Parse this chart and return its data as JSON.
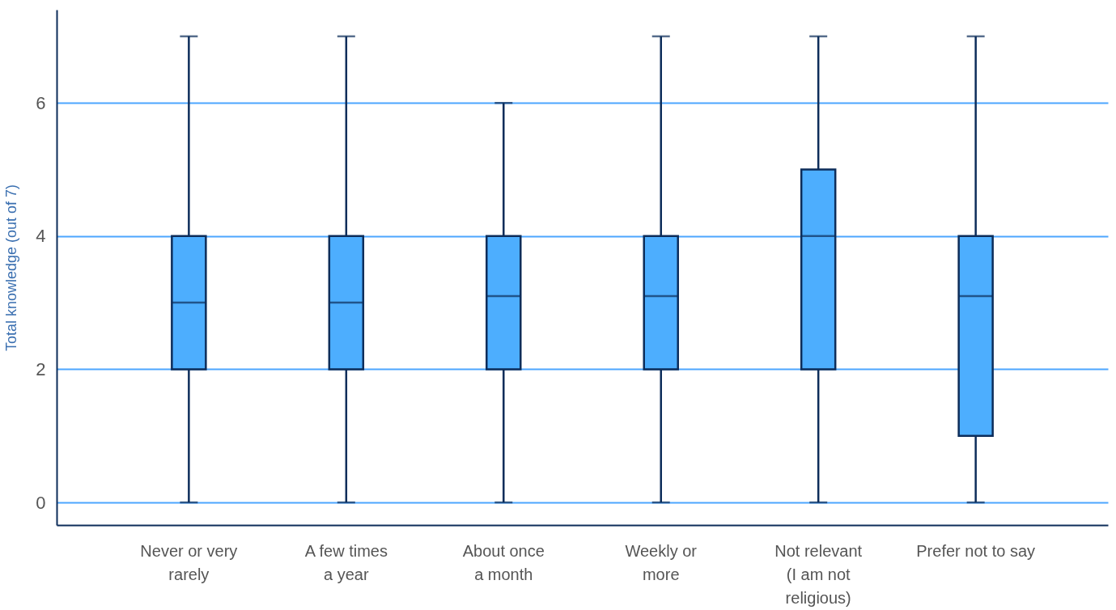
{
  "chart_data": {
    "type": "box",
    "ylabel": "Total knowledge (out of 7)",
    "categories": [
      "Never or very\nrarely",
      "A few times\na year",
      "About once\na month",
      "Weekly or\nmore",
      "Not relevant\n(I am not\nreligious)",
      "Prefer not to say"
    ],
    "boxes": [
      {
        "low": 0,
        "q1": 2,
        "median": 3,
        "q3": 4,
        "high": 7
      },
      {
        "low": 0,
        "q1": 2,
        "median": 3,
        "q3": 4,
        "high": 7
      },
      {
        "low": 0,
        "q1": 2,
        "median": 3.1,
        "q3": 4,
        "high": 6
      },
      {
        "low": 0,
        "q1": 2,
        "median": 3.1,
        "q3": 4,
        "high": 7
      },
      {
        "low": 0,
        "q1": 2,
        "median": 4,
        "q3": 5,
        "high": 7
      },
      {
        "low": 0,
        "q1": 1,
        "median": 3.1,
        "q3": 4,
        "high": 7
      }
    ],
    "color": "#4daefe",
    "ylim": [
      -0.34,
      7.4
    ],
    "yticks": [
      0,
      2,
      4,
      6
    ],
    "grid": "y"
  }
}
